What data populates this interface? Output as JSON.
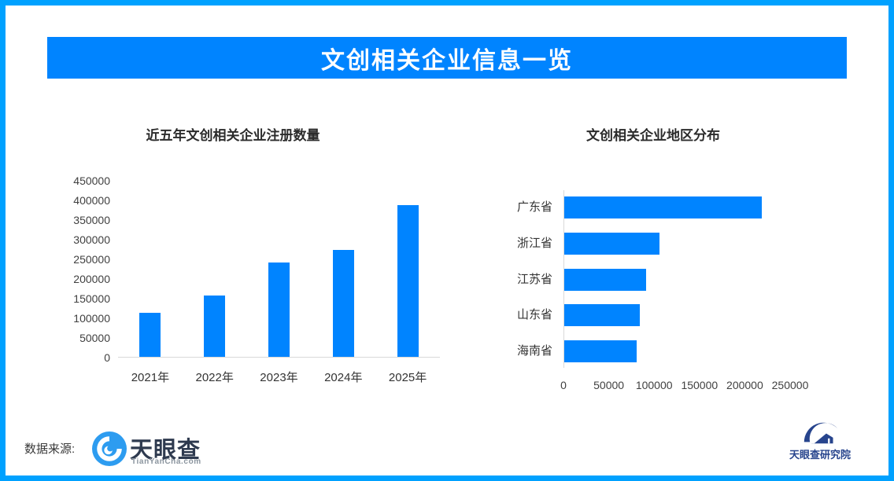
{
  "banner": {
    "title": "文创相关企业信息一览"
  },
  "colors": {
    "frame_blue": "#00A1FF",
    "banner_blue": "#0084FF",
    "bar_blue": "#0084FF",
    "axis_line_gray": "#D9D9D9",
    "tick_label_gray": "#404040",
    "logo_navy": "#27448D"
  },
  "chart_data": [
    {
      "type": "bar",
      "orientation": "vertical",
      "title": "近五年文创相关企业注册数量",
      "categories": [
        "2021年",
        "2022年",
        "2023年",
        "2024年",
        "2025年"
      ],
      "values": [
        113000,
        156000,
        240000,
        272000,
        386000
      ],
      "xlabel": "",
      "ylabel": "",
      "ylim": [
        0,
        450000
      ],
      "yticks": [
        0,
        50000,
        100000,
        150000,
        200000,
        250000,
        300000,
        350000,
        400000,
        450000
      ],
      "grid": false,
      "legend": "none",
      "bar_color": "#0084FF"
    },
    {
      "type": "bar",
      "orientation": "horizontal",
      "title": "文创相关企业地区分布",
      "categories": [
        "广东省",
        "浙江省",
        "江苏省",
        "山东省",
        "海南省"
      ],
      "values": [
        218000,
        105000,
        90000,
        83000,
        80000
      ],
      "xlabel": "",
      "ylabel": "",
      "xlim": [
        0,
        250000
      ],
      "xticks": [
        0,
        50000,
        100000,
        150000,
        200000,
        250000
      ],
      "grid": false,
      "legend": "none",
      "bar_color": "#0084FF"
    }
  ],
  "footer": {
    "source_label": "数据来源:",
    "tianyancha_logo": {
      "icon": "tianyancha-eye-icon",
      "name": "天眼查",
      "domain": "TianYanCha.com"
    },
    "institute": {
      "icon": "tianyancha-institute-icon",
      "name": "天眼查研究院"
    }
  }
}
